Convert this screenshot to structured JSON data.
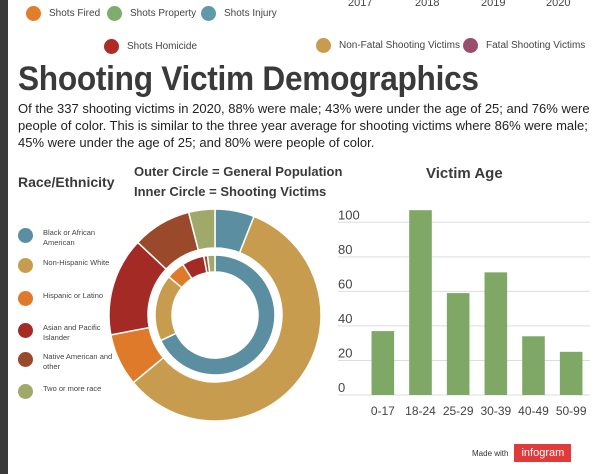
{
  "years": [
    "2017",
    "2018",
    "2019",
    "2020"
  ],
  "top_legend": [
    {
      "label": "Shots Fired",
      "color": "#e07e2a"
    },
    {
      "label": "Shots Property",
      "color": "#7fad6e"
    },
    {
      "label": "Shots Injury",
      "color": "#5f9aa8"
    },
    {
      "label": "Shots Homicide",
      "color": "#b02a26"
    },
    {
      "label": "Non-Fatal Shooting Victims",
      "color": "#c89c4e"
    },
    {
      "label": "Fatal Shooting Victims",
      "color": "#9a4e6a"
    }
  ],
  "title": "Shooting Victim Demographics",
  "summary": "Of the 337 shooting victims in 2020, 88% were male; 43% were under the age of 25; and 76% were people of color. This is similar to the three year average for shooting victims where 86% were male; 45% were under the age of 25; and 80% were people of color.",
  "credit": {
    "made_with": "Made with",
    "brand": "infogram"
  },
  "chart_data": [
    {
      "type": "pie",
      "title": "Race/Ethnicity",
      "notes": [
        "Outer Circle = General Population",
        "Inner Circle = Shooting Victims"
      ],
      "legend_position": "left",
      "categories": [
        "Black or African American",
        "Non-Hispanic White",
        "Hispanic or Latino",
        "Asian and Pacific Islander",
        "Native American and other",
        "Two or more race"
      ],
      "colors": [
        "#5a8ea0",
        "#c89c4e",
        "#de7a2a",
        "#a42a26",
        "#9a4a2a",
        "#a0a86a"
      ],
      "series": [
        {
          "name": "Outer Circle = General Population",
          "values": [
            6,
            58,
            8,
            15,
            9,
            4
          ]
        },
        {
          "name": "Inner Circle = Shooting Victims",
          "values": [
            68,
            18,
            5,
            6,
            1,
            2
          ]
        }
      ]
    },
    {
      "type": "bar",
      "title": "Victim Age",
      "categories": [
        "0-17",
        "18-24",
        "25-29",
        "30-39",
        "40-49",
        "50-99"
      ],
      "values": [
        37,
        107,
        59,
        71,
        34,
        25
      ],
      "ylim": [
        0,
        110
      ],
      "yticks": [
        0,
        20,
        40,
        60,
        80,
        100
      ],
      "color": "#7fa867",
      "grid": true
    }
  ]
}
